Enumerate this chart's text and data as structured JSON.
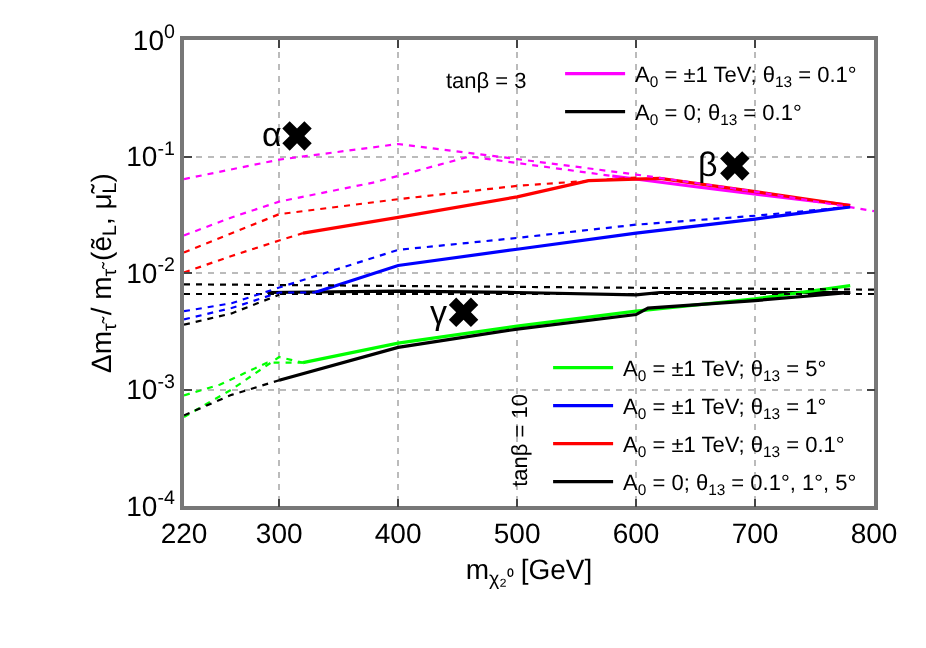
{
  "chart_data": {
    "type": "line",
    "xlabel": "m$_{χ₂⁰}$ [GeV]",
    "ylabel": "Δm$_{τ̃}$ / m$_{τ̃}$ (ẽ$_{L}$, μ̃$_{L}$)",
    "log": "y",
    "grid": true,
    "legend": "right",
    "xlim": [
      220,
      800
    ],
    "xticks": [
      220,
      300,
      400,
      500,
      600,
      700,
      800
    ],
    "ylim": [
      0.0001,
      1
    ],
    "yticks": [
      {
        "value": 1,
        "label": "10$^{0}$"
      },
      {
        "value": 0.1,
        "label": "10$^{-1}$"
      },
      {
        "value": 0.01,
        "label": "10$^{-2}$"
      },
      {
        "value": 0.001,
        "label": "10$^{-3}$"
      },
      {
        "value": 0.0001,
        "label": "10$^{-4}$"
      }
    ],
    "annotations": [
      "tanβ = 3",
      "tanβ = 10",
      {
        "text": "α",
        "x": 315,
        "y": 0.15
      },
      {
        "text": "β",
        "x": 683,
        "y": 0.083
      },
      {
        "text": "γ",
        "x": 455,
        "y": 0.0046
      }
    ],
    "series": [
      {
        "name": "A$_{0}$ = ±1 TeV; θ$_{13}$ = 0.1°",
        "color": "#ff00ff",
        "line_style": "solid",
        "x": [
          580,
          650,
          720,
          780
        ],
        "values": [
          0.068,
          0.055,
          0.045,
          0.038
        ]
      },
      {
        "name": "A$_{0}$ = 0; θ$_{13}$ = 0.1°",
        "color": "#000000",
        "line_style": "solid",
        "x": [
          290,
          400,
          500,
          600,
          620,
          700,
          780
        ],
        "values": [
          0.0068,
          0.007,
          0.0068,
          0.0065,
          0.0068,
          0.0068,
          0.0068
        ]
      },
      {
        "name": "A$_{0}$ = ±1 TeV; θ$_{13}$ = 5°",
        "color": "#00ff00",
        "line_style": "solid",
        "x": [
          320,
          400,
          500,
          600,
          700,
          780
        ],
        "values": [
          0.0017,
          0.0025,
          0.0035,
          0.0047,
          0.006,
          0.0078
        ]
      },
      {
        "name": "A$_{0}$ = ±1 TeV; θ$_{13}$ = 1°",
        "color": "#0000ff",
        "line_style": "solid",
        "x": [
          330,
          400,
          500,
          600,
          700,
          780
        ],
        "values": [
          0.0068,
          0.0116,
          0.016,
          0.022,
          0.029,
          0.037
        ]
      },
      {
        "name": "A$_{0}$ = ±1 TeV; θ$_{13}$ = 0.1°",
        "color": "#ff0000",
        "line_style": "solid",
        "x": [
          320,
          400,
          500,
          560,
          620,
          700,
          780
        ],
        "values": [
          0.022,
          0.03,
          0.045,
          0.062,
          0.065,
          0.05,
          0.038
        ]
      },
      {
        "name": "A$_{0}$ = 0; θ$_{13}$ = 0.1°, 1°, 5°",
        "color": "#000000",
        "line_style": "solid",
        "x": [
          300,
          400,
          500,
          600,
          610,
          700,
          780
        ],
        "values": [
          0.0012,
          0.0023,
          0.0033,
          0.0044,
          0.005,
          0.0058,
          0.0068
        ]
      },
      {
        "color": "#ff00ff",
        "line_style": "dotted",
        "x": [
          220,
          300,
          400,
          500,
          600,
          700,
          800
        ],
        "values": [
          0.064,
          0.094,
          0.128,
          0.095,
          0.07,
          0.05,
          0.034
        ]
      },
      {
        "color": "#ff00ff",
        "line_style": "dotted",
        "x": [
          220,
          260,
          300,
          380,
          460,
          580
        ],
        "values": [
          0.021,
          0.03,
          0.041,
          0.06,
          0.1,
          0.068
        ]
      },
      {
        "color": "#000000",
        "line_style": "dotted",
        "x": [
          220,
          800
        ],
        "values": [
          0.008,
          0.0072
        ]
      },
      {
        "color": "#000000",
        "line_style": "dotted",
        "x": [
          220,
          800
        ],
        "values": [
          0.0066,
          0.0066
        ]
      },
      {
        "color": "#00ff00",
        "line_style": "dotted",
        "x": [
          220,
          260,
          300,
          320
        ],
        "values": [
          0.00058,
          0.001,
          0.0019,
          0.0017
        ]
      },
      {
        "color": "#00ff00",
        "line_style": "dotted",
        "x": [
          220,
          250,
          290,
          320
        ],
        "values": [
          0.00089,
          0.0011,
          0.0017,
          0.0017
        ]
      },
      {
        "color": "#0000ff",
        "line_style": "dotted",
        "x": [
          220,
          260,
          300,
          330
        ],
        "values": [
          0.004,
          0.005,
          0.0068,
          0.0068
        ]
      },
      {
        "color": "#0000ff",
        "line_style": "dotted",
        "x": [
          220,
          260,
          300,
          400,
          500,
          600,
          700,
          780
        ],
        "values": [
          0.0047,
          0.0055,
          0.0075,
          0.0158,
          0.02,
          0.026,
          0.031,
          0.037
        ]
      },
      {
        "color": "#ff0000",
        "line_style": "dotted",
        "x": [
          220,
          300,
          400,
          500,
          600
        ],
        "values": [
          0.015,
          0.032,
          0.043,
          0.056,
          0.066
        ]
      },
      {
        "color": "#ff0000",
        "line_style": "dotted",
        "x": [
          220,
          260,
          300,
          320
        ],
        "values": [
          0.0101,
          0.014,
          0.019,
          0.022
        ]
      },
      {
        "color": "#000000",
        "line_style": "dotted",
        "x": [
          220,
          260,
          300
        ],
        "values": [
          0.0006,
          0.0009,
          0.0012
        ]
      },
      {
        "color": "#000000",
        "line_style": "dotted",
        "x": [
          220,
          260,
          300
        ],
        "values": [
          0.0036,
          0.0045,
          0.0065
        ]
      },
      {
        "type": "scatter",
        "marker": "cross",
        "color": "#000000",
        "x": [
          315,
          683,
          455
        ],
        "values": [
          0.15,
          0.083,
          0.0046
        ]
      }
    ]
  }
}
